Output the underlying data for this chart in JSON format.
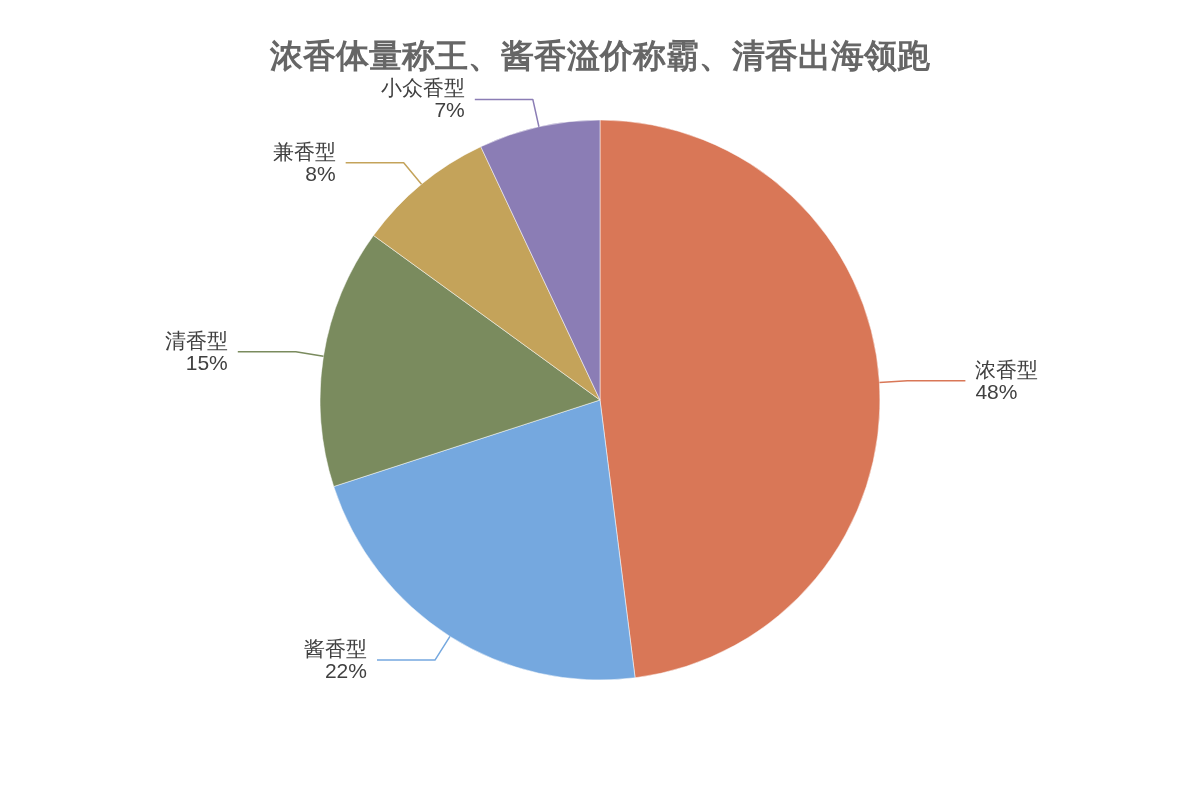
{
  "chart_data": {
    "type": "pie",
    "title": "浓香体量称王、酱香溢价称霸、清香出海领跑",
    "categories": [
      "浓香型",
      "酱香型",
      "清香型",
      "兼香型",
      "小众香型"
    ],
    "values": [
      48,
      22,
      15,
      8,
      7
    ],
    "value_labels": [
      "48%",
      "22%",
      "15%",
      "8%",
      "7%"
    ],
    "colors": [
      "#d97757",
      "#75a8df",
      "#7a8b5e",
      "#c4a35a",
      "#8b7db5"
    ],
    "legend": false
  }
}
